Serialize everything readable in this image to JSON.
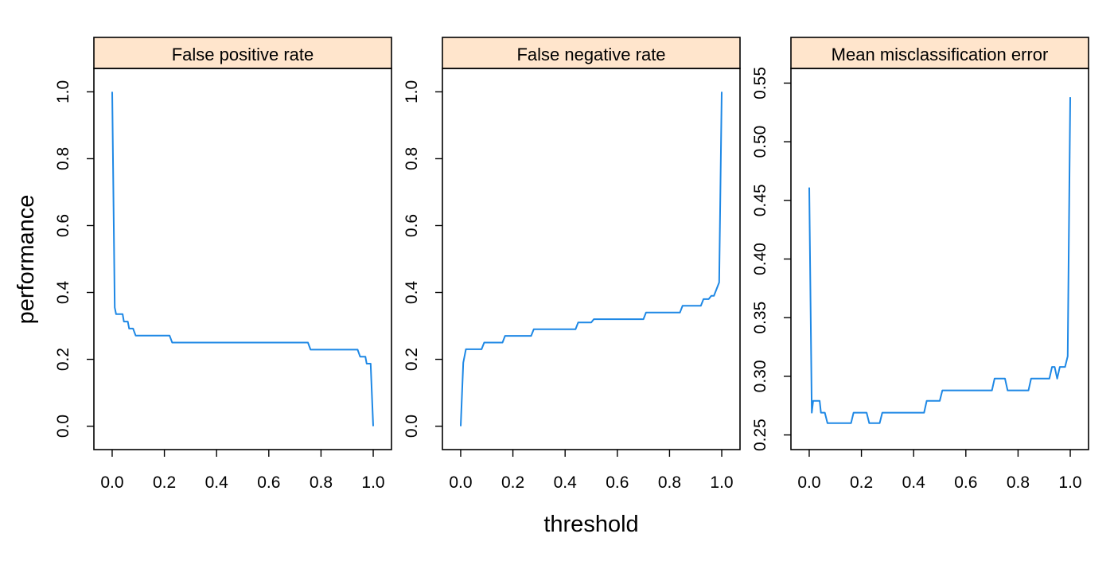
{
  "xlabel": "threshold",
  "ylabel": "performance",
  "colors": {
    "line": "#1e88e5",
    "strip": "#ffe5cc",
    "frame": "#000000"
  },
  "chart_data": [
    {
      "type": "line",
      "title": "False positive rate",
      "xlim": [
        -0.07,
        1.07
      ],
      "ylim": [
        -0.07,
        1.07
      ],
      "x_ticks": [
        "0.0",
        "0.2",
        "0.4",
        "0.6",
        "0.8",
        "1.0"
      ],
      "y_ticks": [
        "0.0",
        "0.2",
        "0.4",
        "0.6",
        "0.8",
        "1.0"
      ],
      "points": [
        [
          0.0,
          1.0
        ],
        [
          0.01,
          0.355
        ],
        [
          0.015,
          0.335
        ],
        [
          0.04,
          0.335
        ],
        [
          0.045,
          0.313
        ],
        [
          0.06,
          0.313
        ],
        [
          0.065,
          0.292
        ],
        [
          0.08,
          0.292
        ],
        [
          0.09,
          0.271
        ],
        [
          0.22,
          0.271
        ],
        [
          0.23,
          0.25
        ],
        [
          0.75,
          0.25
        ],
        [
          0.76,
          0.229
        ],
        [
          0.94,
          0.229
        ],
        [
          0.95,
          0.208
        ],
        [
          0.97,
          0.208
        ],
        [
          0.975,
          0.187
        ],
        [
          0.99,
          0.187
        ],
        [
          1.0,
          0.0
        ]
      ]
    },
    {
      "type": "line",
      "title": "False negative rate",
      "xlim": [
        -0.07,
        1.07
      ],
      "ylim": [
        -0.07,
        1.07
      ],
      "x_ticks": [
        "0.0",
        "0.2",
        "0.4",
        "0.6",
        "0.8",
        "1.0"
      ],
      "y_ticks": [
        "0.0",
        "0.2",
        "0.4",
        "0.6",
        "0.8",
        "1.0"
      ],
      "points": [
        [
          0.0,
          0.0
        ],
        [
          0.01,
          0.19
        ],
        [
          0.02,
          0.23
        ],
        [
          0.08,
          0.23
        ],
        [
          0.09,
          0.25
        ],
        [
          0.16,
          0.25
        ],
        [
          0.17,
          0.27
        ],
        [
          0.27,
          0.27
        ],
        [
          0.28,
          0.29
        ],
        [
          0.44,
          0.29
        ],
        [
          0.45,
          0.31
        ],
        [
          0.5,
          0.31
        ],
        [
          0.51,
          0.32
        ],
        [
          0.7,
          0.32
        ],
        [
          0.71,
          0.34
        ],
        [
          0.84,
          0.34
        ],
        [
          0.85,
          0.36
        ],
        [
          0.92,
          0.36
        ],
        [
          0.93,
          0.38
        ],
        [
          0.95,
          0.38
        ],
        [
          0.96,
          0.39
        ],
        [
          0.97,
          0.39
        ],
        [
          0.99,
          0.43
        ],
        [
          1.0,
          1.0
        ]
      ]
    },
    {
      "type": "line",
      "title": "Mean misclassification error",
      "xlim": [
        -0.07,
        1.07
      ],
      "ylim": [
        0.2375,
        0.5625
      ],
      "x_ticks": [
        "0.0",
        "0.2",
        "0.4",
        "0.6",
        "0.8",
        "1.0"
      ],
      "y_ticks": [
        "0.25",
        "0.30",
        "0.35",
        "0.40",
        "0.45",
        "0.50",
        "0.55"
      ],
      "points": [
        [
          0.0,
          0.461
        ],
        [
          0.01,
          0.269
        ],
        [
          0.015,
          0.279
        ],
        [
          0.04,
          0.279
        ],
        [
          0.045,
          0.269
        ],
        [
          0.06,
          0.269
        ],
        [
          0.07,
          0.26
        ],
        [
          0.16,
          0.26
        ],
        [
          0.17,
          0.269
        ],
        [
          0.22,
          0.269
        ],
        [
          0.23,
          0.26
        ],
        [
          0.27,
          0.26
        ],
        [
          0.28,
          0.269
        ],
        [
          0.44,
          0.269
        ],
        [
          0.45,
          0.279
        ],
        [
          0.5,
          0.279
        ],
        [
          0.51,
          0.288
        ],
        [
          0.7,
          0.288
        ],
        [
          0.71,
          0.298
        ],
        [
          0.75,
          0.298
        ],
        [
          0.76,
          0.288
        ],
        [
          0.84,
          0.288
        ],
        [
          0.85,
          0.298
        ],
        [
          0.92,
          0.298
        ],
        [
          0.93,
          0.308
        ],
        [
          0.94,
          0.308
        ],
        [
          0.95,
          0.298
        ],
        [
          0.96,
          0.308
        ],
        [
          0.98,
          0.308
        ],
        [
          0.99,
          0.317
        ],
        [
          1.0,
          0.538
        ]
      ]
    }
  ]
}
